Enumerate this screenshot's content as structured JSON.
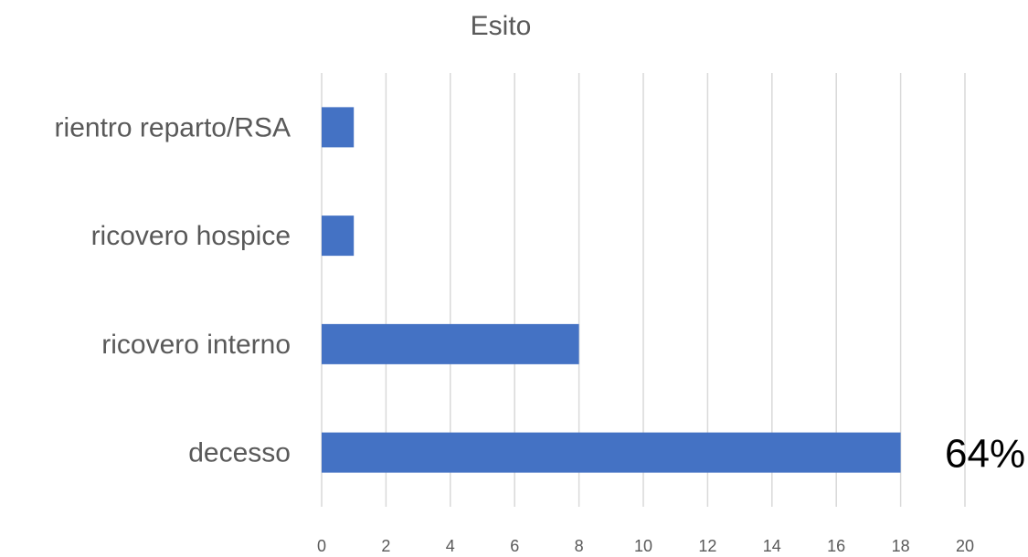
{
  "chart_data": {
    "type": "bar",
    "orientation": "horizontal",
    "title": "Esito",
    "categories": [
      "rientro reparto/RSA",
      "ricovero hospice",
      "ricovero interno",
      "decesso"
    ],
    "values": [
      1,
      1,
      8,
      18
    ],
    "xlim": [
      0,
      20
    ],
    "xticks": [
      0,
      2,
      4,
      6,
      8,
      10,
      12,
      14,
      16,
      18,
      20
    ],
    "grid": "vertical",
    "legend": "none",
    "bar_color": "#4472C4",
    "annotations": [
      {
        "category": "decesso",
        "text": "64%"
      }
    ]
  }
}
